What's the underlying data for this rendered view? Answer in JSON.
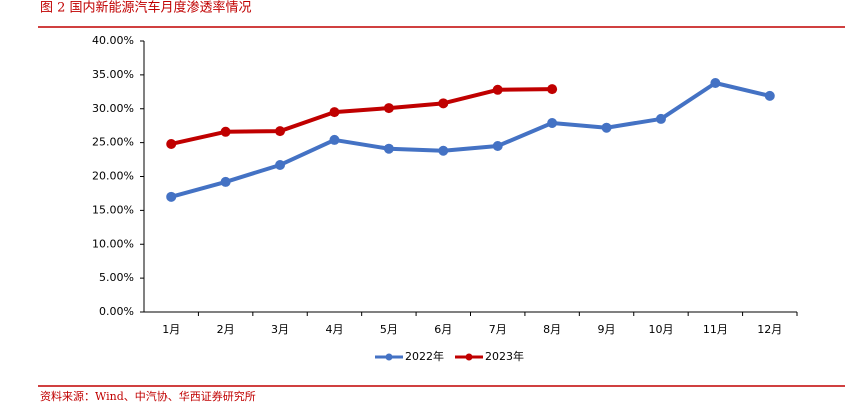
{
  "chart_data": {
    "type": "line",
    "title": "图 2 国内新能源汽车月度渗透率情况",
    "source": "资料来源：Wind、中汽协、华西证券研究所",
    "categories": [
      "1月",
      "2月",
      "3月",
      "4月",
      "5月",
      "6月",
      "7月",
      "8月",
      "9月",
      "10月",
      "11月",
      "12月"
    ],
    "series": [
      {
        "name": "2022年",
        "color": "#4472c4",
        "values": [
          17.0,
          19.2,
          21.7,
          25.4,
          24.1,
          23.8,
          24.5,
          27.9,
          27.2,
          28.5,
          33.8,
          31.9
        ]
      },
      {
        "name": "2023年",
        "color": "#c00000",
        "values": [
          24.8,
          26.6,
          26.7,
          29.5,
          30.1,
          30.8,
          32.8,
          32.9,
          null,
          null,
          null,
          null
        ]
      }
    ],
    "ylim": [
      0,
      40
    ],
    "yticks": [
      {
        "value": 0,
        "label": "0.00%"
      },
      {
        "value": 5,
        "label": "5.00%"
      },
      {
        "value": 10,
        "label": "10.00%"
      },
      {
        "value": 15,
        "label": "15.00%"
      },
      {
        "value": 20,
        "label": "20.00%"
      },
      {
        "value": 25,
        "label": "25.00%"
      },
      {
        "value": 30,
        "label": "30.00%"
      },
      {
        "value": 35,
        "label": "35.00%"
      },
      {
        "value": 40,
        "label": "40.00%"
      }
    ],
    "grid": false,
    "legend": "bottom"
  }
}
